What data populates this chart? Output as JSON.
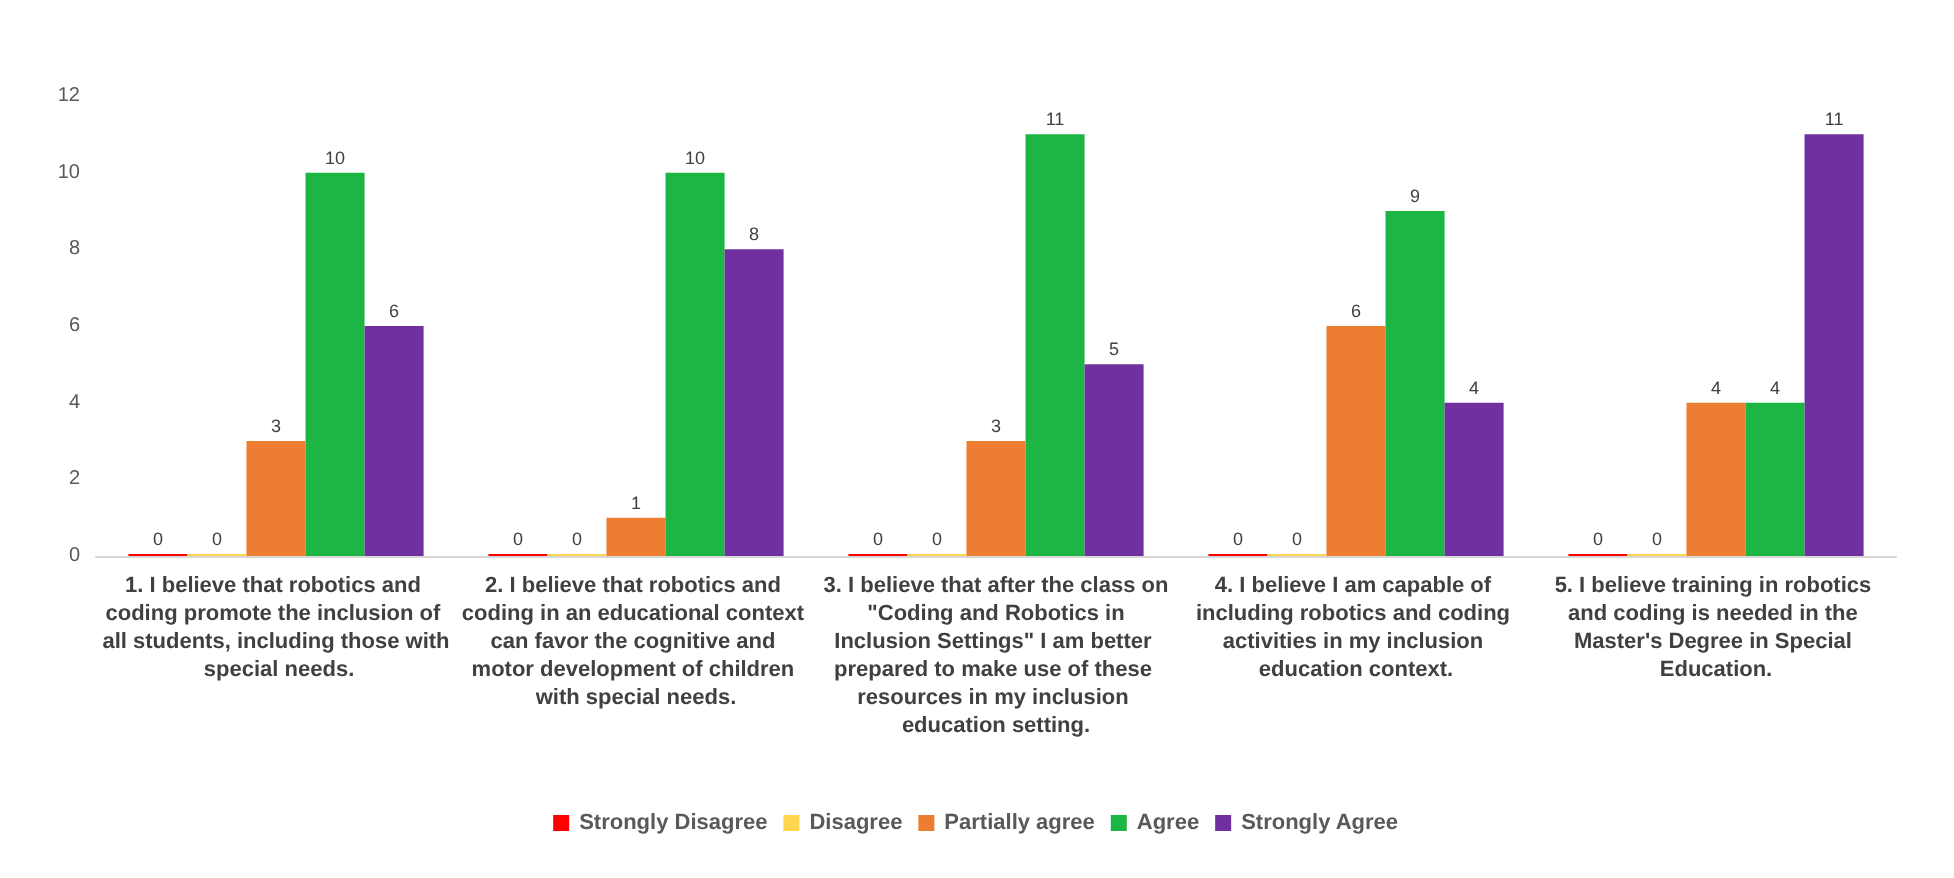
{
  "chart_data": {
    "type": "bar",
    "categories": [
      "1. I believe that robotics and coding promote the inclusion of all students, including those with special needs.",
      "2. I believe that robotics and coding in an educational context can favor the cognitive and motor development of children with special needs.",
      "3. I believe that after the class on \"Coding and Robotics in Inclusion Settings\" I am better prepared to make use of these resources in my inclusion education setting.",
      "4. I believe I am capable of including robotics and coding activities in my inclusion education context.",
      "5. I believe training in robotics and coding is needed in the Master's Degree in Special Education."
    ],
    "series": [
      {
        "name": "Strongly Disagree",
        "color": "#ff0000",
        "values": [
          0,
          0,
          0,
          0,
          0
        ]
      },
      {
        "name": "Disagree",
        "color": "#ffd54f",
        "values": [
          0,
          0,
          0,
          0,
          0
        ]
      },
      {
        "name": "Partially agree",
        "color": "#ed7d31",
        "values": [
          3,
          1,
          3,
          6,
          4
        ]
      },
      {
        "name": "Agree",
        "color": "#1db543",
        "values": [
          10,
          10,
          11,
          9,
          4
        ]
      },
      {
        "name": "Strongly Agree",
        "color": "#7030a0",
        "values": [
          6,
          8,
          5,
          4,
          11
        ]
      }
    ],
    "ylim": [
      0,
      12
    ],
    "yticks": [
      0,
      2,
      4,
      6,
      8,
      10,
      12
    ],
    "grid": false,
    "legend": "bottom",
    "data_labels": true
  }
}
